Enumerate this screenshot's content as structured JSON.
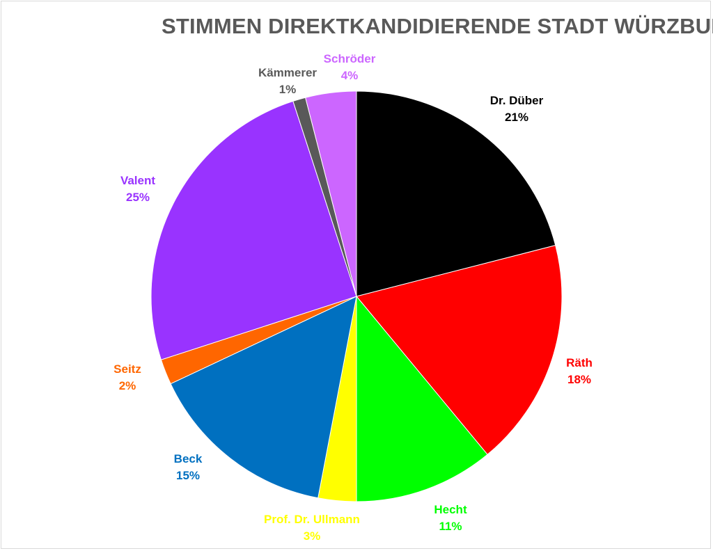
{
  "chart_data": {
    "type": "pie",
    "title": "STIMMEN DIREKTKANDIDIERENDE STADT WÜRZBURG",
    "slices": [
      {
        "name": "Dr. Düber",
        "value": 21,
        "label": "21%",
        "color": "#000000",
        "label_color": "#000000"
      },
      {
        "name": "Räth",
        "value": 18,
        "label": "18%",
        "color": "#ff0000",
        "label_color": "#ff0000"
      },
      {
        "name": "Hecht",
        "value": 11,
        "label": "11%",
        "color": "#00ff00",
        "label_color": "#00ff00"
      },
      {
        "name": "Prof. Dr. Ullmann",
        "value": 3,
        "label": "3%",
        "color": "#ffff00",
        "label_color": "#ffff00"
      },
      {
        "name": "Beck",
        "value": 15,
        "label": "15%",
        "color": "#0070c0",
        "label_color": "#0070c0"
      },
      {
        "name": "Seitz",
        "value": 2,
        "label": "2%",
        "color": "#ff6600",
        "label_color": "#ff6600"
      },
      {
        "name": "Valent",
        "value": 25,
        "label": "25%",
        "color": "#9933ff",
        "label_color": "#9933ff"
      },
      {
        "name": "Kämmerer",
        "value": 1,
        "label": "1%",
        "color": "#595959",
        "label_color": "#595959"
      },
      {
        "name": "Schröder",
        "value": 4,
        "label": "4%",
        "color": "#cc66ff",
        "label_color": "#cc66ff"
      }
    ]
  }
}
